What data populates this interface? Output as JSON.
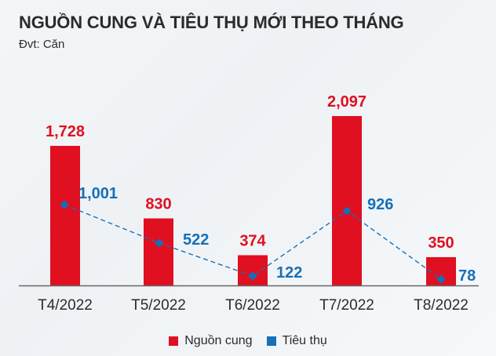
{
  "title": "NGUỒN CUNG VÀ TIÊU THỤ MỚI THEO THÁNG",
  "unit": "Đvt: Căn",
  "colors": {
    "supply": "#e01020",
    "consumption": "#1570b8",
    "axis": "#666666"
  },
  "legend": [
    {
      "label": "Nguồn cung",
      "color": "#e01020"
    },
    {
      "label": "Tiêu thụ",
      "color": "#1570b8"
    }
  ],
  "chart_data": {
    "type": "bar",
    "title": "NGUỒN CUNG VÀ TIÊU THỤ MỚI THEO THÁNG",
    "subtitle": "Đvt: Căn",
    "categories": [
      "T4/2022",
      "T5/2022",
      "T6/2022",
      "T7/2022",
      "T8/2022"
    ],
    "series": [
      {
        "name": "Nguồn cung",
        "type": "bar",
        "values": [
          1728,
          830,
          374,
          2097,
          350
        ],
        "labels": [
          "1,728",
          "830",
          "374",
          "2,097",
          "350"
        ]
      },
      {
        "name": "Tiêu thụ",
        "type": "line",
        "style": "dashed",
        "marker": "diamond",
        "values": [
          1001,
          522,
          122,
          926,
          78
        ],
        "labels": [
          "1,001",
          "522",
          "122",
          "926",
          "78"
        ]
      }
    ],
    "xlabel": "",
    "ylabel": "",
    "grid": false,
    "legend_position": "bottom"
  }
}
